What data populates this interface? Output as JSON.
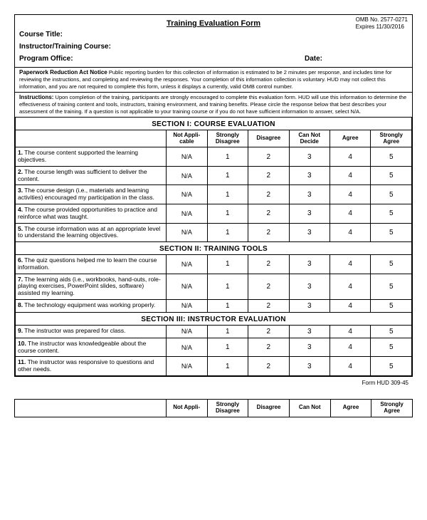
{
  "form": {
    "title": "Training Evaluation Form",
    "omb_no": "OMB No. 2577-0271",
    "expires": "Expires 11/30/2016",
    "labels": {
      "course_title": "Course Title:",
      "instructor": "Instructor/Training Course:",
      "program_office": "Program Office:",
      "date": "Date:"
    },
    "pra": {
      "label": "Paperwork Reduction Act Notice",
      "text": "Public reporting burden for this collection of information is estimated to be 2 minutes per response, and includes time for reviewing the instructions, and completing and reviewing the responses. Your completion of this information collection is voluntary. HUD may not collect this information, and you are not required to complete this form, unless it displays a currently, valid OMB control number."
    },
    "instructions": {
      "label": "Instructions:",
      "text": "Upon completion of the training, participants are strongly encouraged to complete this evaluation form. HUD will use this information to determine the effectiveness of training content and tools, instructors, training environment, and training benefits. Please circle the response below that best describes your assessment of the training. If a question is not applicable to your training course or if you do not have sufficient information to answer, select N/A."
    }
  },
  "scale": {
    "cols": [
      "Not Appli-cable",
      "Strongly Disagree",
      "Disagree",
      "Can Not Decide",
      "Agree",
      "Strongly Agree"
    ],
    "cols2": [
      "Not Appli-",
      "Strongly Disagree",
      "Disagree",
      "Can Not",
      "Agree",
      "Strongly Agree"
    ],
    "vals": [
      "N/A",
      "1",
      "2",
      "3",
      "4",
      "5"
    ]
  },
  "sections": [
    {
      "title": "SECTION I:   COURSE EVALUATION",
      "rows": [
        {
          "n": "1.",
          "q": "The course content supported the learning objectives."
        },
        {
          "n": "2.",
          "q": "The course length was sufficient to deliver the content."
        },
        {
          "n": "3.",
          "q": "The course design (i.e., materials and learning activities) encouraged my participation in the class."
        },
        {
          "n": "4.",
          "q": "The course provided opportunities to practice and reinforce what was taught."
        },
        {
          "n": "5.",
          "q": "The course information was at an appropriate level to understand the learning objectives."
        }
      ]
    },
    {
      "title": "SECTION II:   TRAINING TOOLS",
      "rows": [
        {
          "n": "6.",
          "q": "The quiz questions helped me to learn the course information."
        },
        {
          "n": "7.",
          "q": "The learning aids (i.e., workbooks, hand-outs, role-playing exercises, PowerPoint slides, software) assisted my learning."
        },
        {
          "n": "8.",
          "q": "The technology equipment was working properly."
        }
      ]
    },
    {
      "title": "SECTION III:   INSTRUCTOR EVALUATION",
      "rows": [
        {
          "n": "9.",
          "q": "The instructor was prepared for class."
        },
        {
          "n": "10.",
          "q": "The instructor was knowledgeable about the course content."
        },
        {
          "n": "11.",
          "q": "The instructor was responsive to questions and other needs."
        }
      ]
    }
  ],
  "footer": "Form HUD 309-45"
}
